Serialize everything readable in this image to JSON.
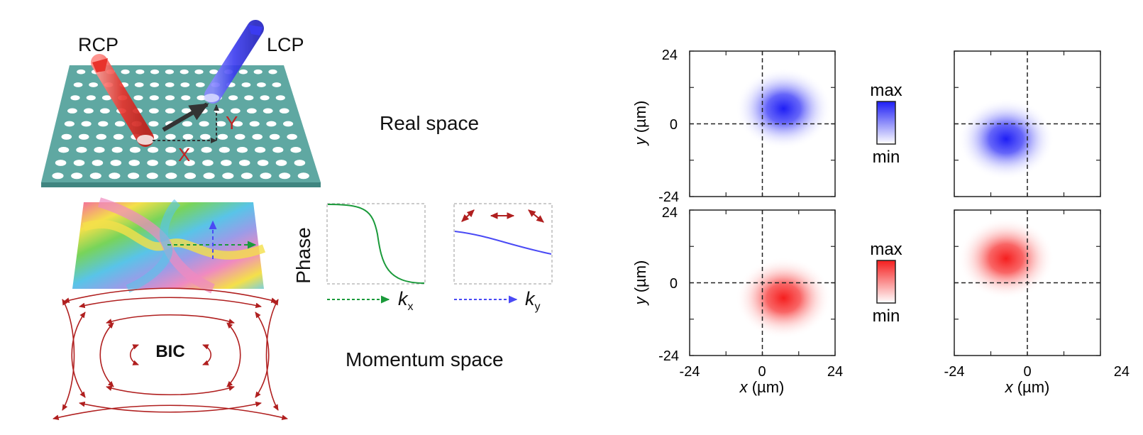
{
  "schematic": {
    "beam_left": "RCP",
    "beam_right": "LCP",
    "axis_x": "X",
    "axis_y": "Y",
    "real_space": "Real space",
    "momentum_space": "Momentum space",
    "bic": "BIC",
    "phase_label": "Phase",
    "kx_main": "k",
    "kx_sub": "x",
    "ky_main": "k",
    "ky_sub": "y"
  },
  "colors": {
    "lattice": "#5fa8a2",
    "rcp": "#e8332c",
    "lcp": "#3b3bf0",
    "arrow_red": "#b01f1f",
    "kx_line": "#1a9a3a",
    "ky_line": "#4a4af5"
  },
  "maps": {
    "tick_neg": "-24",
    "tick_zero": "0",
    "tick_pos": "24",
    "y_axis_var": "y",
    "y_axis_unit": " (µm)",
    "x_axis_var": "x",
    "x_axis_unit": " (µm)",
    "scale_max": "max",
    "scale_min": "min",
    "axis_range_um": [
      -24,
      24
    ],
    "panels": [
      {
        "name": "top-left",
        "color": "blue",
        "spot_center_um": [
          7,
          5
        ]
      },
      {
        "name": "top-right",
        "color": "blue",
        "spot_center_um": [
          -7,
          -5
        ]
      },
      {
        "name": "bottom-left",
        "color": "red",
        "spot_center_um": [
          7,
          -5
        ]
      },
      {
        "name": "bottom-right",
        "color": "red",
        "spot_center_um": [
          -7,
          8
        ]
      }
    ]
  }
}
